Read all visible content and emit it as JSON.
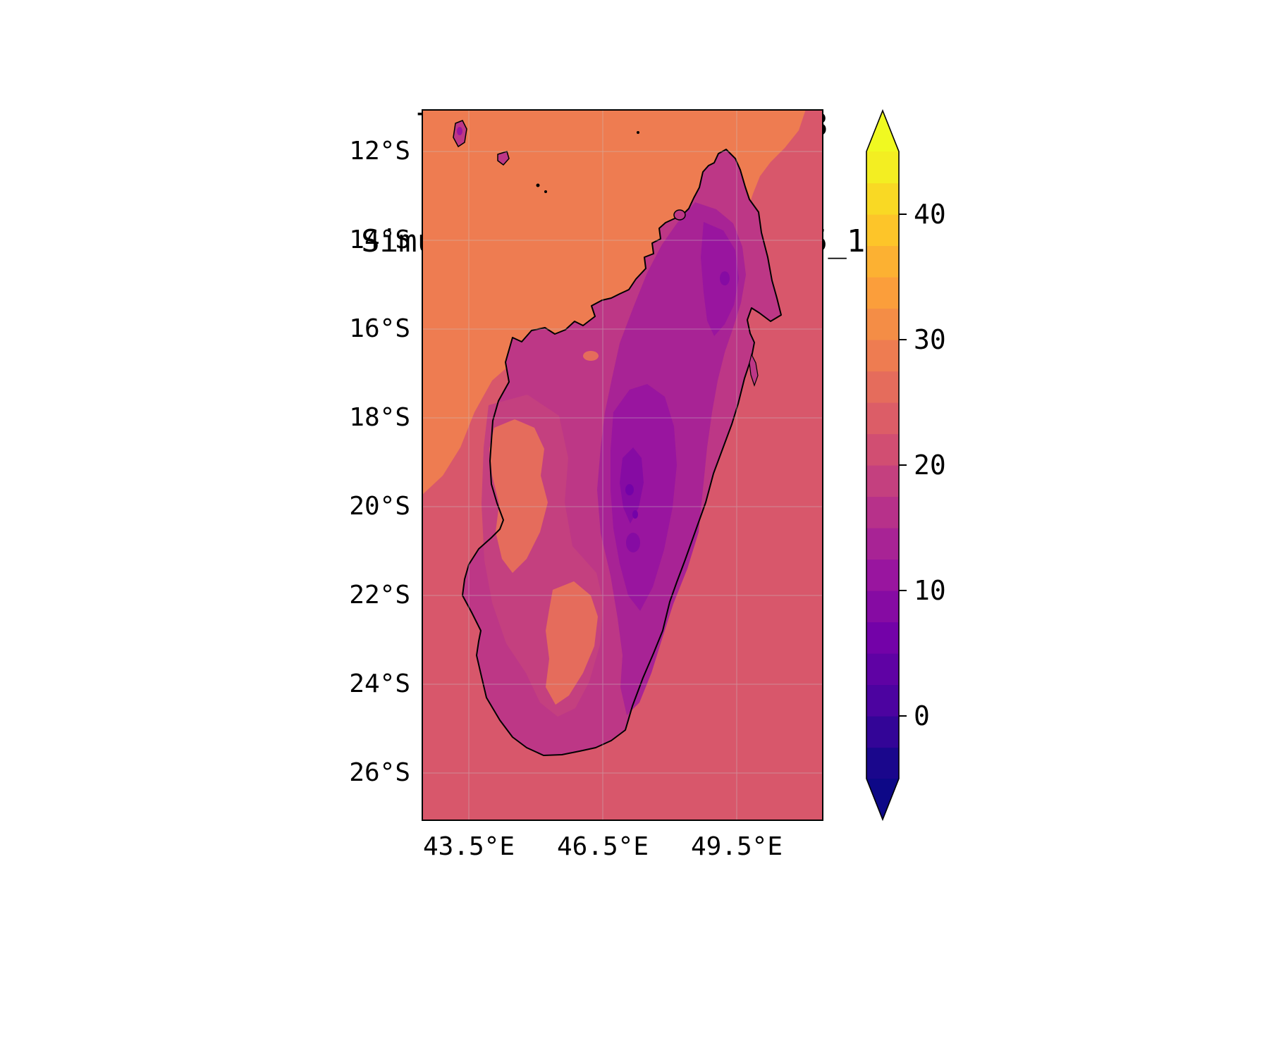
{
  "title": {
    "line1": "Temp(°C) @ 20250807_18",
    "line2": "Simulation Time: 20250805_12"
  },
  "axes": {
    "lat_ticks": [
      "12°S",
      "14°S",
      "16°S",
      "18°S",
      "20°S",
      "22°S",
      "24°S",
      "26°S"
    ],
    "lon_ticks": [
      "43.5°E",
      "46.5°E",
      "49.5°E"
    ]
  },
  "colorbar": {
    "tick_labels": [
      "40",
      "30",
      "20",
      "10",
      "0"
    ],
    "tick_values": [
      40,
      30,
      20,
      10,
      0
    ],
    "vmin": -5,
    "vmax": 45,
    "step": 2.5,
    "colormap": "plasma",
    "extend": "both",
    "under_color": "#0d0887",
    "over_color": "#f0f921",
    "band_colors": [
      "#1a078c",
      "#330597",
      "#4c03a0",
      "#5f02a4",
      "#7302a8",
      "#860ba3",
      "#99159f",
      "#a82395",
      "#b7318a",
      "#c4407f",
      "#d14e72",
      "#dc5d67",
      "#e56c5c",
      "#ee7c51",
      "#f48d46",
      "#fb9e3b",
      "#fcb132",
      "#fdc529",
      "#f9d924",
      "#f3ee22"
    ]
  },
  "colors": {
    "ocean": "#d8576b",
    "ocean_warm": "#ee7c51",
    "land": "#bd3786",
    "land_pink": "#c4407f",
    "land_warm": "#e56c5c",
    "highland_mid": "#a82395",
    "highland": "#99159f",
    "highland_cold": "#860ba3",
    "highland_coldest": "#7302a8",
    "coastline": "#000000",
    "gridline": "#c8c8c8",
    "frame": "#000000"
  },
  "chart_data": {
    "type": "heatmap",
    "title": "Temp(°C) @ 20250807_18",
    "subtitle": "Simulation Time: 20250805_12",
    "variable": "Temp (°C)",
    "region": "Madagascar and surrounding ocean",
    "x_tick_labels": [
      "43.5°E",
      "46.5°E",
      "49.5°E"
    ],
    "y_tick_labels": [
      "12°S",
      "14°S",
      "16°S",
      "18°S",
      "20°S",
      "22°S",
      "24°S",
      "26°S"
    ],
    "colorbar_ticks": [
      0,
      10,
      20,
      30,
      40
    ],
    "levels": {
      "min": -5,
      "max": 45,
      "step": 2.5
    },
    "colormap": "plasma",
    "extend": "both",
    "legend_position": "right",
    "grid": true,
    "observations": [
      {
        "area": "Ocean south and east of Madagascar",
        "approx_temp_c": 22.5
      },
      {
        "area": "Mozambique Channel / north-west ocean",
        "approx_temp_c": 27
      },
      {
        "area": "Madagascar coastal lowlands",
        "approx_temp_c": 16
      },
      {
        "area": "Western lowland warm patches",
        "approx_temp_c": 24
      },
      {
        "area": "Central highlands",
        "approx_temp_c": 11
      },
      {
        "area": "Coldest highland cores",
        "approx_temp_c": 6
      }
    ]
  }
}
